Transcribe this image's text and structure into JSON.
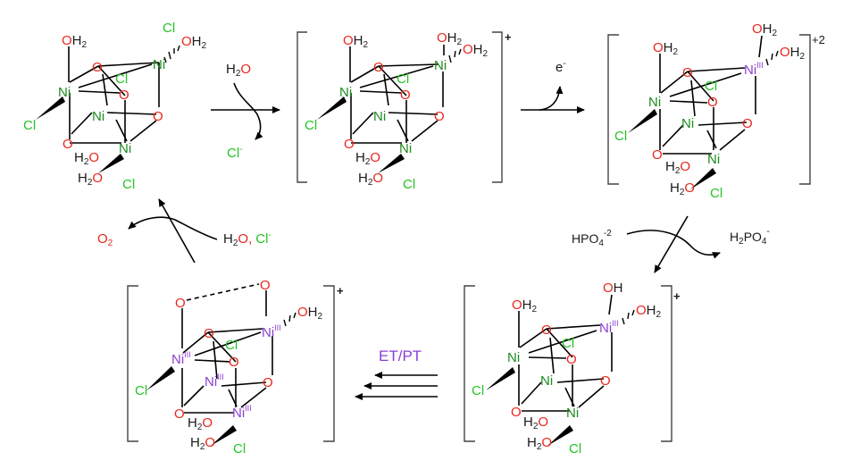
{
  "colors": {
    "oxygen": "#e8261c",
    "nickel": "#1f8a1f",
    "chlorine": "#25c225",
    "nickel_iii": "#8a3fd1",
    "bond": "#000000",
    "label": "#1a1a1a"
  },
  "atoms": {
    "ni": "Ni",
    "o": "O",
    "oh": "OH",
    "cl": "Cl",
    "h2o": "H",
    "h2o_sub": "2",
    "h2o_o": "O",
    "iii": "III"
  },
  "charges": {
    "plus": "+",
    "plus2": "+2"
  },
  "reagents": {
    "water": {
      "h": "H",
      "sub": "2",
      "o": "O"
    },
    "chloride": {
      "cl": "Cl",
      "sup": "-"
    },
    "electron": {
      "e": "e",
      "sup": "-"
    },
    "hpo4": {
      "a": "HPO",
      "sub": "4",
      "sup": "-2"
    },
    "h2po4": {
      "a": "H",
      "sub1": "2",
      "b": "PO",
      "sub2": "4",
      "sup": "-"
    },
    "o2": {
      "o": "O",
      "sub": "2"
    },
    "water_cl": {
      "h": "H",
      "sub": "2",
      "o": "O,",
      "cl": "Cl",
      "sup": "-"
    },
    "etpt": "ET/PT"
  }
}
